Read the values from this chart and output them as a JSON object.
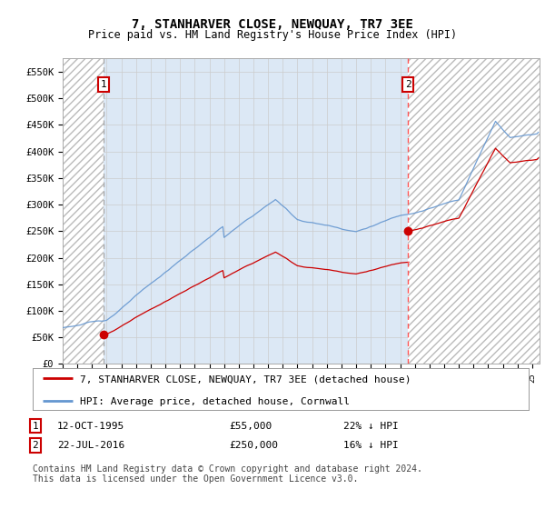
{
  "title": "7, STANHARVER CLOSE, NEWQUAY, TR7 3EE",
  "subtitle": "Price paid vs. HM Land Registry's House Price Index (HPI)",
  "ylabel_ticks": [
    "£0",
    "£50K",
    "£100K",
    "£150K",
    "£200K",
    "£250K",
    "£300K",
    "£350K",
    "£400K",
    "£450K",
    "£500K",
    "£550K"
  ],
  "ytick_values": [
    0,
    50000,
    100000,
    150000,
    200000,
    250000,
    300000,
    350000,
    400000,
    450000,
    500000,
    550000
  ],
  "ylim": [
    0,
    575000
  ],
  "xlim_start": 1993.0,
  "xlim_end": 2025.5,
  "sale1_year": 1995,
  "sale1_month": 10,
  "sale1_date": 1995.79,
  "sale1_price": 55000,
  "sale1_label": "1",
  "sale2_year": 2016,
  "sale2_month": 7,
  "sale2_date": 2016.54,
  "sale2_price": 250000,
  "sale2_label": "2",
  "legend_line1": "7, STANHARVER CLOSE, NEWQUAY, TR7 3EE (detached house)",
  "legend_line2": "HPI: Average price, detached house, Cornwall",
  "footer": "Contains HM Land Registry data © Crown copyright and database right 2024.\nThis data is licensed under the Open Government Licence v3.0.",
  "hpi_color": "#6496d0",
  "price_color": "#CC0000",
  "sale_marker_color": "#CC0000",
  "vline1_color": "#AAAAAA",
  "vline2_color": "#FF5555",
  "hatch_color": "#BBBBBB",
  "grid_color": "#CCCCCC",
  "bg_color": "#DCE8F5",
  "plot_bg": "#FFFFFF",
  "title_fontsize": 10,
  "subtitle_fontsize": 8.5,
  "tick_fontsize": 7.5,
  "legend_fontsize": 8,
  "footer_fontsize": 7
}
